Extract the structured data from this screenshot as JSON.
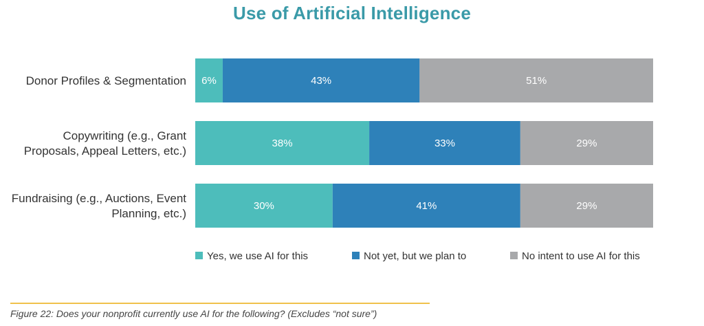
{
  "chart_data": {
    "type": "bar",
    "orientation": "horizontal",
    "stacked": true,
    "title": "Use of Artificial Intelligence",
    "categories": [
      [
        "Donor Profiles & Segmentation"
      ],
      [
        "Copywriting (e.g., Grant",
        "Proposals, Appeal Letters, etc.)"
      ],
      [
        "Fundraising (e.g., Auctions, Event",
        "Planning, etc.)"
      ]
    ],
    "series": [
      {
        "name": "Yes, we use AI for this",
        "values": [
          6,
          38,
          30
        ],
        "color": "#4dbdbb"
      },
      {
        "name": "Not yet, but we plan to",
        "values": [
          43,
          33,
          41
        ],
        "color": "#2e81b9"
      },
      {
        "name": "No intent to use AI for this",
        "values": [
          51,
          29,
          29
        ],
        "color": "#a8a9ab"
      }
    ],
    "value_suffix": "%",
    "xlim": [
      0,
      100
    ],
    "legend_position": "bottom",
    "grid": false
  },
  "caption": "Figure 22: Does your nonprofit currently use AI for the following? (Excludes “not sure”)",
  "colors": {
    "title": "#3a9aa8",
    "caption_rule": "#f0c14b"
  }
}
